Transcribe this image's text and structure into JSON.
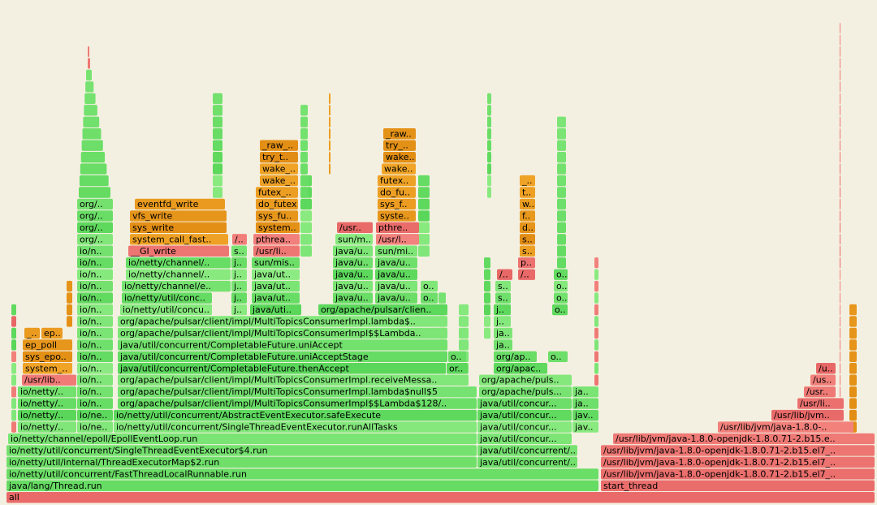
{
  "frames": [
    "all",
    "java/lang/Thread.run",
    "start_thread",
    "io/netty/util/concurrent/FastThreadLocalRunnable.run",
    "/usr/lib/jvm/java-1.8.0-openjdk-1.8.0.71-2.b15.el7_..",
    "io/netty/util/internal/ThreadExecutorMap$2.run",
    "java/util/concurrent/..",
    "/usr/lib/jvm/java-1.8.0-openjdk-1.8.0.71-2.b15.el7_..",
    "io/netty/util/concurrent/SingleThreadEventExecutor$4.run",
    "java/util/concurrent/..",
    "/usr/lib/jvm/java-1.8.0-openjdk-1.8.0.71-2.b15.el7_..",
    "io/netty/channel/epoll/EpollEventLoop.run",
    "java/util/concur...",
    "/usr/lib/jvm/java-1.8.0-openjdk-1.8.0.71-2.b15.e..",
    "io/netty/..",
    "io/ne..",
    "io/netty/util/concurrent/SingleThreadEventExecutor.runAllTasks",
    "java/util/concur...",
    "jav..",
    "/usr/lib/jvm/java-1.8.0-..",
    "io/netty/..",
    "io/ne..",
    "io/netty/util/concurrent/AbstractEventExecutor.safeExecute",
    "java/util/concur...",
    "jav..",
    "/usr/lib/jvm..",
    "io/netty/..",
    "io/n..",
    "org/apache/pulsar/client/impl/MultiTopicsConsumerImpl$$Lambda$128/..",
    "java/util/concur...",
    "ja..",
    "/usr/li..",
    "io/netty/..",
    "io/n..",
    "org/apache/pulsar/client/impl/MultiTopicsConsumerImpl.lambda$null$5",
    "org/apache/puls...",
    "ja..",
    "/usr..",
    "/usr/lib..",
    "io/n..",
    "org/apache/pulsar/client/impl/MultiTopicsConsumerImpl.receiveMessa..",
    "org/apache/puls..",
    "/us..",
    "system_..",
    "io/n..",
    "java/util/concurrent/CompletableFuture.thenAccept",
    "or..",
    "org/apac..",
    "/u..",
    "sys_epo..",
    "io/n..",
    "java/util/concurrent/CompletableFuture.uniAcceptStage",
    "o..",
    "org/ap..",
    "o..",
    "ep_poll",
    "io/n..",
    "java/util/concurrent/CompletableFuture.uniAccept",
    "ja..",
    "_..",
    "ep..",
    "io/n..",
    "org/apache/pulsar/client/impl/MultiTopicsConsumerImpl$$Lambda..",
    "ja..",
    "io/n..",
    "org/apache/pulsar/client/impl/MultiTopicsConsumerImpl.lambda$..",
    "j..",
    "io/n..",
    "io/netty/util/concu..",
    "j..",
    "java/uti..",
    "org/apache/pulsar/clien..",
    "j..",
    "o..",
    "io/n..",
    "io/netty/util/conc..",
    "j..",
    "java/ut..",
    "java/u..",
    "java/u..",
    "o..",
    "s..",
    "o..",
    "io/n..",
    "io/netty/channel/e..",
    "j..",
    "java/ut..",
    "java/u..",
    "java/u..",
    "o..",
    "s..",
    "o..",
    "io/n..",
    "io/netty/channel/..",
    "j..",
    "java/ut..",
    "java/u..",
    "java/u..",
    "/..",
    "/..",
    "o..",
    "io/n..",
    "io/netty/channel/..",
    "j..",
    "sun/mis..",
    "java/u..",
    "java/u..",
    "p..",
    "io/n..",
    "__GI_write",
    "s..",
    "/usr/li..",
    "java/u..",
    "sun/mi..",
    "s..",
    "org/..",
    "system_call_fast..",
    "/..",
    "pthrea..",
    "sun/m..",
    "/usr/l..",
    "s..",
    "org/..",
    "sys_write",
    "system..",
    "/usr..",
    "pthre..",
    "d..",
    "org/..",
    "vfs_write",
    "sys_fu..",
    "syste..",
    "f..",
    "org/..",
    "eventfd_write",
    "do_futex",
    "sys_f..",
    "w..",
    "futex_..",
    "do_fu..",
    "t..",
    "wake_..",
    "futex..",
    "_..",
    "wake_..",
    "wake..",
    "try_t..",
    "wake..",
    "_raw_..",
    "try_..",
    "_raw.."
  ]
}
